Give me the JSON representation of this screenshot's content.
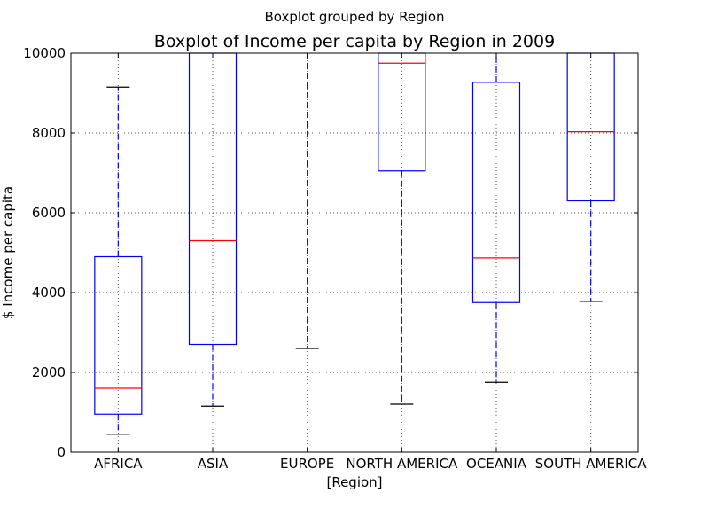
{
  "chart_data": {
    "type": "boxplot",
    "suptitle": "Boxplot grouped by Region",
    "title": "Boxplot of Income per capita by Region in 2009",
    "xlabel": "[Region]",
    "ylabel": "$ Income per capita",
    "ylim": [
      0,
      10000
    ],
    "yticks": [
      0,
      2000,
      4000,
      6000,
      8000,
      10000
    ],
    "grid": true,
    "categories": [
      "AFRICA",
      "ASIA",
      "EUROPE",
      "NORTH AMERICA",
      "OCEANIA",
      "SOUTH AMERICA"
    ],
    "boxes": [
      {
        "whisker_low": 450,
        "q1": 950,
        "median": 1600,
        "q3": 4900,
        "whisker_high": 9150
      },
      {
        "whisker_low": 1150,
        "q1": 2700,
        "median": 5300,
        "q3": 10000,
        "whisker_high": 10000
      },
      {
        "whisker_low": 2600,
        "q1": 10000,
        "median": 10000,
        "q3": 10000,
        "whisker_high": 10000
      },
      {
        "whisker_low": 1200,
        "q1": 7050,
        "median": 9750,
        "q3": 10000,
        "whisker_high": 10000
      },
      {
        "whisker_low": 1750,
        "q1": 3750,
        "median": 4870,
        "q3": 9270,
        "whisker_high": 10000
      },
      {
        "whisker_low": 3780,
        "q1": 6300,
        "median": 8030,
        "q3": 10000,
        "whisker_high": 10000
      }
    ],
    "colors": {
      "box": "#0000ff",
      "median": "#ff0000",
      "whisker": "#0000ff",
      "cap": "#000000",
      "grid": "#555555"
    }
  }
}
